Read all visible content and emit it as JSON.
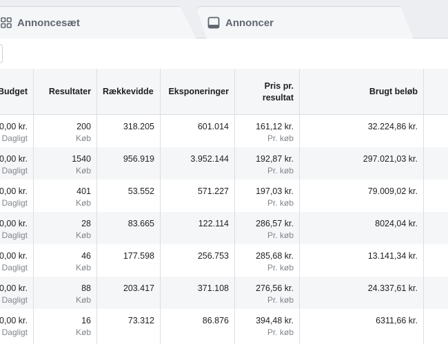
{
  "tabs": [
    {
      "label": "Annoncesæt",
      "icon": "ad-sets-grid-icon"
    },
    {
      "label": "Annoncer",
      "icon": "ad-icon"
    }
  ],
  "columns": [
    "Budget",
    "Resultater",
    "Rækkevidde",
    "Eksponeringer",
    "Pris pr. resultat",
    "Brugt beløb"
  ],
  "rows": [
    {
      "budget": "0,00 kr.",
      "budget_sub": "Dagligt",
      "results": "200",
      "results_sub": "Køb",
      "reach": "318.205",
      "impressions": "601.014",
      "cpr": "161,12 kr.",
      "cpr_sub": "Pr. køb",
      "spent": "32.224,86 kr."
    },
    {
      "budget": "0,00 kr.",
      "budget_sub": "Dagligt",
      "results": "1540",
      "results_sub": "Køb",
      "reach": "956.919",
      "impressions": "3.952.144",
      "cpr": "192,87 kr.",
      "cpr_sub": "Pr. køb",
      "spent": "297.021,03 kr."
    },
    {
      "budget": "0,00 kr.",
      "budget_sub": "Dagligt",
      "results": "401",
      "results_sub": "Køb",
      "reach": "53.552",
      "impressions": "571.227",
      "cpr": "197,03 kr.",
      "cpr_sub": "Pr. køb",
      "spent": "79.009,02 kr."
    },
    {
      "budget": "0,00 kr.",
      "budget_sub": "Dagligt",
      "results": "28",
      "results_sub": "Køb",
      "reach": "83.665",
      "impressions": "122.114",
      "cpr": "286,57 kr.",
      "cpr_sub": "Pr. køb",
      "spent": "8024,04 kr."
    },
    {
      "budget": "0,00 kr.",
      "budget_sub": "Dagligt",
      "results": "46",
      "results_sub": "Køb",
      "reach": "177.598",
      "impressions": "256.753",
      "cpr": "285,68 kr.",
      "cpr_sub": "Pr. køb",
      "spent": "13.141,34 kr."
    },
    {
      "budget": "0,00 kr.",
      "budget_sub": "Dagligt",
      "results": "88",
      "results_sub": "Køb",
      "reach": "203.417",
      "impressions": "371.108",
      "cpr": "276,56 kr.",
      "cpr_sub": "Pr. køb",
      "spent": "24.337,61 kr."
    },
    {
      "budget": "0,00 kr.",
      "budget_sub": "Dagligt",
      "results": "16",
      "results_sub": "Køb",
      "reach": "73.312",
      "impressions": "86.876",
      "cpr": "394,48 kr.",
      "cpr_sub": "Pr. køb",
      "spent": "6311,66 kr."
    }
  ]
}
